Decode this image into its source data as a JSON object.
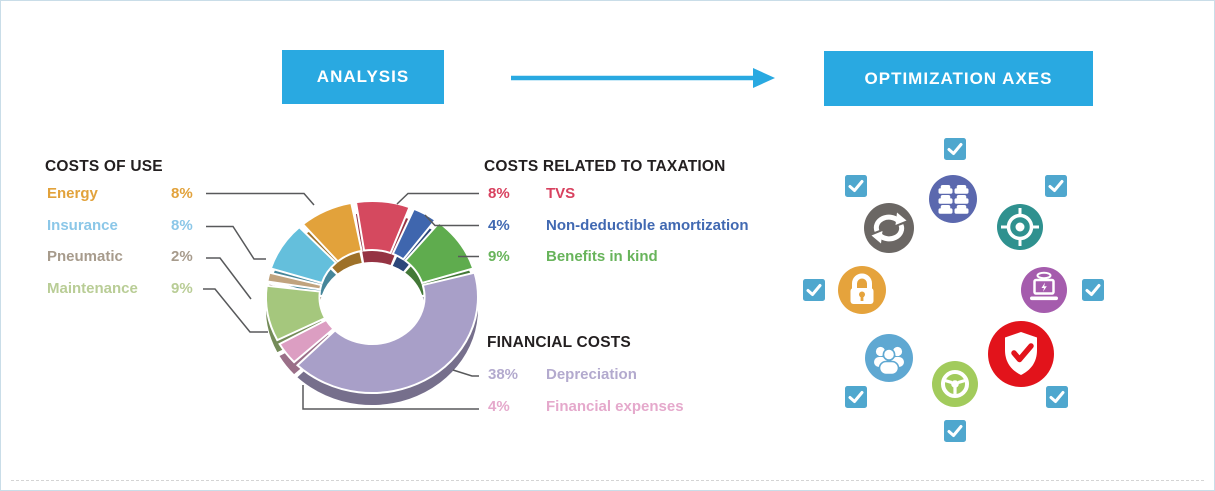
{
  "header": {
    "analysis_label": "ANALYSIS",
    "optimization_label": "OPTIMIZATION AXES",
    "button_color": "#29A9E1",
    "arrow_color": "#29A9E1"
  },
  "legends": {
    "heading_color": "#231F20",
    "costs_of_use": {
      "title": "COSTS OF USE",
      "items": [
        {
          "label": "Energy",
          "value": "8%",
          "color": "#E2A23B"
        },
        {
          "label": "Insurance",
          "value": "8%",
          "color": "#8BC7E8"
        },
        {
          "label": "Pneumatic",
          "value": "2%",
          "color": "#A79B8C"
        },
        {
          "label": "Maintenance",
          "value": "9%",
          "color": "#B9CD96"
        }
      ]
    },
    "taxation": {
      "title": "COSTS RELATED TO TAXATION",
      "items": [
        {
          "value": "8%",
          "label": "TVS",
          "color": "#D8415F"
        },
        {
          "value": "4%",
          "label": "Non-deductible amortization",
          "color": "#4169B2"
        },
        {
          "value": "9%",
          "label": "Benefits in kind",
          "color": "#68B45B"
        }
      ]
    },
    "financial": {
      "title": "FINANCIAL COSTS",
      "items": [
        {
          "value": "38%",
          "label": "Depreciation",
          "color": "#B3AACE"
        },
        {
          "value": "4%",
          "label": "Financial expenses",
          "color": "#E5A9CC"
        }
      ]
    }
  },
  "chart_data": {
    "type": "pie",
    "style": "3d-exploded-donut",
    "title": "",
    "direction": "clockwise",
    "start_angle_deg": -10,
    "total_labeled_pct": 90,
    "connector_color": "#58595B",
    "segments": [
      {
        "label": "TVS",
        "value": 8,
        "color": "#D5495F"
      },
      {
        "label": "Non-deductible amortization",
        "value": 4,
        "color": "#3F66AE"
      },
      {
        "label": "Benefits in kind",
        "value": 9,
        "color": "#5FAC4E"
      },
      {
        "label": "Depreciation",
        "value": 38,
        "color": "#A89FC8"
      },
      {
        "label": "Financial expenses",
        "value": 4,
        "color": "#DC9EC2"
      },
      {
        "label": "Maintenance",
        "value": 9,
        "color": "#A5C77D"
      },
      {
        "label": "Pneumatic",
        "value": 2,
        "color": "#C0A37E"
      },
      {
        "label": "Insurance",
        "value": 8,
        "color": "#64BFDC"
      },
      {
        "label": "Energy",
        "value": 8,
        "color": "#E2A23B"
      }
    ]
  },
  "optimization": {
    "checkbox_color": "#4FA7CE",
    "checkboxes_checked": 8,
    "icons": [
      {
        "key": "fleet",
        "name": "fleet-vehicles",
        "color": "#5B68AE",
        "checked": true
      },
      {
        "key": "refresh",
        "name": "renewal-cycle",
        "color": "#6B6764",
        "checked": true
      },
      {
        "key": "target",
        "name": "target",
        "color": "#2F918F",
        "checked": true
      },
      {
        "key": "lock",
        "name": "security-lock",
        "color": "#E5A33C",
        "checked": true
      },
      {
        "key": "laptop",
        "name": "connected-telematics",
        "color": "#A55CAD",
        "checked": true
      },
      {
        "key": "people",
        "name": "drivers-group",
        "color": "#5FA8D2",
        "checked": true
      },
      {
        "key": "steering",
        "name": "steering-wheel",
        "color": "#A2CB5C",
        "checked": true
      },
      {
        "key": "shield",
        "name": "protection-shield",
        "color": "#E2131B",
        "checked": true
      }
    ]
  }
}
